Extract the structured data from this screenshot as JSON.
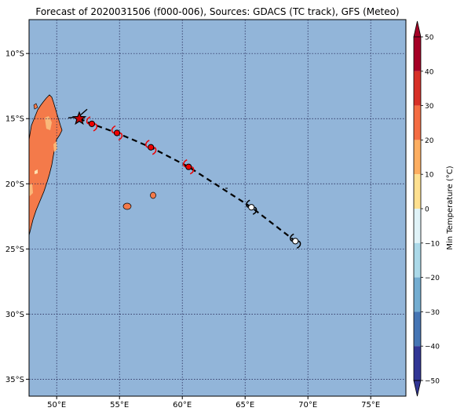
{
  "title": "Forecast of 2020031506 (f000-006), Sources: GDACS (TC track), GFS (Meteo)",
  "map": {
    "lon_range": [
      47.8,
      77.8
    ],
    "lat_range": [
      -36.3,
      -7.4
    ],
    "lon_ticks": [
      50,
      55,
      60,
      65,
      70,
      75
    ],
    "lat_ticks": [
      -10,
      -15,
      -20,
      -25,
      -30,
      -35
    ],
    "lon_tick_labels": [
      "50°E",
      "55°E",
      "60°E",
      "65°E",
      "70°E",
      "75°E"
    ],
    "lat_tick_labels": [
      "10°S",
      "15°S",
      "20°S",
      "25°S",
      "30°S",
      "35°S"
    ],
    "ocean_color": "#92b5d9",
    "land_color": "#f47a4a",
    "warm_patch_color": "#f9b87a",
    "grid": true
  },
  "colorbar": {
    "label": "Min Temperature (°C)",
    "ticks": [
      50,
      40,
      30,
      20,
      10,
      0,
      -10,
      -20,
      -30,
      -40,
      -50
    ],
    "tick_labels": [
      "50",
      "40",
      "30",
      "20",
      "10",
      "0",
      "−10",
      "−20",
      "−30",
      "−40",
      "−50"
    ],
    "colors_top_to_bottom": [
      "#a50026",
      "#d73027",
      "#f46d43",
      "#fdae61",
      "#fee090",
      "#ffffbf",
      "#e0f3f8",
      "#abd9e9",
      "#74add1",
      "#4575b4",
      "#313695"
    ],
    "extend": "both"
  },
  "track": {
    "points": [
      {
        "lon": 51.8,
        "lat": -15.0,
        "marker": "star",
        "color": "#cc0000"
      },
      {
        "lon": 52.8,
        "lat": -15.4,
        "marker": "cyclone",
        "color": "#ee0000"
      },
      {
        "lon": 54.8,
        "lat": -16.1,
        "marker": "cyclone",
        "color": "#ee0000"
      },
      {
        "lon": 57.5,
        "lat": -17.2,
        "marker": "cyclone",
        "color": "#ee0000"
      },
      {
        "lon": 60.5,
        "lat": -18.7,
        "marker": "cyclone",
        "color": "#ee0000"
      },
      {
        "lon": 65.5,
        "lat": -21.8,
        "marker": "cyclone",
        "color": "#ffffff"
      },
      {
        "lon": 69.0,
        "lat": -24.4,
        "marker": "cyclone",
        "color": "#ffffff"
      }
    ]
  }
}
